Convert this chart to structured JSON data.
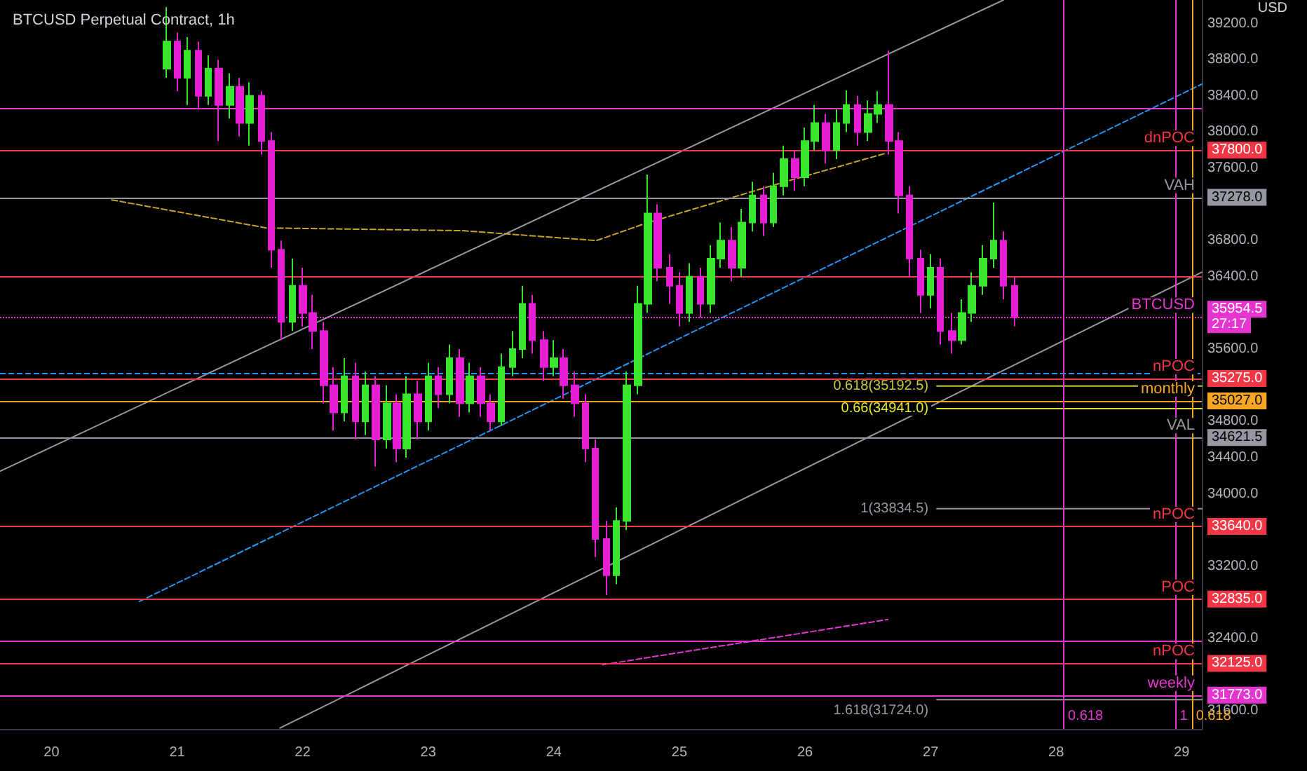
{
  "chart_data": {
    "type": "candlestick",
    "title": "BTCUSD Perpetual Contract, 1h",
    "xlim": [
      19.59,
      29.16
    ],
    "ylim": [
      31400,
      39460
    ],
    "xticks": [
      20,
      21,
      22,
      23,
      24,
      25,
      26,
      27,
      28,
      29
    ],
    "yticks": [
      {
        "value": 31600,
        "label": "31600.0"
      },
      {
        "value": 31773,
        "label": "31773.0"
      },
      {
        "value": 32125,
        "label": "32125.0"
      },
      {
        "value": 32400,
        "label": "32400.0"
      },
      {
        "value": 32835,
        "label": "32835.0"
      },
      {
        "value": 33200,
        "label": "33200.0"
      },
      {
        "value": 33640,
        "label": "33640.0"
      },
      {
        "value": 34000,
        "label": "34000.0"
      },
      {
        "value": 34400,
        "label": "34400.0"
      },
      {
        "value": 34621.5,
        "label": "34621.5"
      },
      {
        "value": 34800,
        "label": "34800.0"
      },
      {
        "value": 35027,
        "label": "35027.0"
      },
      {
        "value": 35275,
        "label": "35275.0"
      },
      {
        "value": 35600,
        "label": "35600.0"
      },
      {
        "value": 35954.5,
        "label": "35954.5\n27:17"
      },
      {
        "value": 36400,
        "label": "36400.0"
      },
      {
        "value": 36800,
        "label": "36800.0"
      },
      {
        "value": 37278,
        "label": "37278.0"
      },
      {
        "value": 37600,
        "label": "37600.0"
      },
      {
        "value": 37800,
        "label": "37800.0"
      },
      {
        "value": 38000,
        "label": "38000.0"
      },
      {
        "value": 38400,
        "label": "38400.0"
      },
      {
        "value": 38800,
        "label": "38800.0"
      },
      {
        "value": 39200,
        "label": "39200.0"
      }
    ],
    "grid": false,
    "legend": false,
    "series": [
      {
        "colors": [
          "#39e62e",
          "#e61ed6",
          "#39e62e",
          "#e61ed6",
          "#39e62e",
          "#e61ed6",
          "#39e62e",
          "#e61ed6",
          "#39e62e",
          "#e61ed6",
          "#e61ed6",
          "#e61ed6",
          "#39e62e",
          "#e61ed6",
          "#e61ed6",
          "#e61ed6",
          "#e61ed6",
          "#39e62e",
          "#e61ed6",
          "#39e62e",
          "#e61ed6",
          "#39e62e",
          "#e61ed6",
          "#39e62e",
          "#e61ed6",
          "#39e62e",
          "#e61ed6",
          "#39e62e",
          "#e61ed6",
          "#39e62e",
          "#e61ed6",
          "#e61ed6",
          "#39e62e",
          "#39e62e",
          "#39e62e",
          "#e61ed6",
          "#e61ed6",
          "#39e62e",
          "#e61ed6",
          "#e61ed6",
          "#e61ed6",
          "#e61ed6",
          "#e61ed6",
          "#39e62e",
          "#39e62e",
          "#39e62e",
          "#39e62e",
          "#e61ed6",
          "#e61ed6",
          "#e61ed6",
          "#39e62e",
          "#e61ed6",
          "#39e62e",
          "#39e62e",
          "#e61ed6",
          "#39e62e",
          "#39e62e",
          "#e61ed6",
          "#39e62e",
          "#39e62e",
          "#e61ed6",
          "#39e62e",
          "#39e62e",
          "#e61ed6",
          "#39e62e",
          "#39e62e",
          "#e61ed6",
          "#39e62e",
          "#39e62e",
          "#e61ed6",
          "#e61ed6",
          "#e61ed6",
          "#e61ed6",
          "#39e62e",
          "#e61ed6",
          "#e61ed6",
          "#39e62e",
          "#39e62e",
          "#39e62e",
          "#39e62e",
          "#e61ed6",
          "#e61ed6"
        ],
        "x": [
          20.92,
          21.0,
          21.08,
          21.17,
          21.25,
          21.33,
          21.42,
          21.5,
          21.58,
          21.67,
          21.75,
          21.83,
          21.92,
          22,
          22.08,
          22.17,
          22.25,
          22.33,
          22.42,
          22.5,
          22.58,
          22.67,
          22.75,
          22.83,
          22.92,
          23,
          23.08,
          23.17,
          23.25,
          23.33,
          23.42,
          23.5,
          23.58,
          23.67,
          23.75,
          23.83,
          23.92,
          24,
          24.08,
          24.17,
          24.25,
          24.33,
          24.42,
          24.5,
          24.58,
          24.67,
          24.75,
          24.83,
          24.92,
          25,
          25.08,
          25.17,
          25.25,
          25.33,
          25.42,
          25.5,
          25.58,
          25.67,
          25.75,
          25.83,
          25.92,
          26,
          26.08,
          26.17,
          26.25,
          26.33,
          26.42,
          26.5,
          26.58,
          26.67,
          26.75,
          26.83,
          26.92,
          27,
          27.08,
          27.17,
          27.25,
          27.33,
          27.42,
          27.5,
          27.58,
          27.67
        ],
        "ohlc": [
          [
            38700,
            39380,
            38600,
            39000
          ],
          [
            39000,
            39100,
            38450,
            38600
          ],
          [
            38600,
            39050,
            38300,
            38900
          ],
          [
            38900,
            39000,
            38250,
            38400
          ],
          [
            38400,
            38850,
            38300,
            38700
          ],
          [
            38700,
            38800,
            37900,
            38300
          ],
          [
            38300,
            38650,
            38150,
            38500
          ],
          [
            38500,
            38600,
            37950,
            38100
          ],
          [
            38100,
            38550,
            37850,
            38400
          ],
          [
            38400,
            38450,
            37750,
            37900
          ],
          [
            37900,
            38000,
            36500,
            36700
          ],
          [
            36700,
            36800,
            35700,
            35900
          ],
          [
            35900,
            36600,
            35800,
            36300
          ],
          [
            36300,
            36500,
            35850,
            36000
          ],
          [
            36000,
            36200,
            35600,
            35800
          ],
          [
            35800,
            35900,
            35000,
            35200
          ],
          [
            35200,
            35400,
            34700,
            34900
          ],
          [
            34900,
            35500,
            34800,
            35300
          ],
          [
            35300,
            35450,
            34600,
            34800
          ],
          [
            34800,
            35350,
            34650,
            35200
          ],
          [
            35200,
            35300,
            34300,
            34600
          ],
          [
            34600,
            35200,
            34500,
            35000
          ],
          [
            35000,
            35100,
            34350,
            34500
          ],
          [
            34500,
            35300,
            34400,
            35100
          ],
          [
            35100,
            35250,
            34600,
            34800
          ],
          [
            34800,
            35450,
            34700,
            35300
          ],
          [
            35300,
            35400,
            34950,
            35100
          ],
          [
            35100,
            35650,
            35000,
            35500
          ],
          [
            35500,
            35600,
            34850,
            35000
          ],
          [
            35000,
            35450,
            34900,
            35300
          ],
          [
            35300,
            35400,
            34850,
            35000
          ],
          [
            35000,
            35100,
            34700,
            34800
          ],
          [
            34800,
            35550,
            34750,
            35400
          ],
          [
            35400,
            35800,
            35300,
            35600
          ],
          [
            35600,
            36300,
            35500,
            36100
          ],
          [
            36100,
            36200,
            35550,
            35700
          ],
          [
            35700,
            35800,
            35250,
            35400
          ],
          [
            35400,
            35700,
            35300,
            35500
          ],
          [
            35500,
            35600,
            35050,
            35200
          ],
          [
            35200,
            35350,
            34850,
            35000
          ],
          [
            35000,
            35100,
            34350,
            34500
          ],
          [
            34500,
            34600,
            33300,
            33500
          ],
          [
            33500,
            33700,
            32880,
            33100
          ],
          [
            33100,
            33850,
            33000,
            33700
          ],
          [
            33700,
            35350,
            33600,
            35200
          ],
          [
            35200,
            36300,
            35100,
            36100
          ],
          [
            36100,
            37530,
            36000,
            37100
          ],
          [
            37100,
            37200,
            36350,
            36500
          ],
          [
            36500,
            36650,
            36100,
            36300
          ],
          [
            36300,
            36450,
            35850,
            36000
          ],
          [
            36000,
            36550,
            35900,
            36400
          ],
          [
            36400,
            36500,
            35950,
            36100
          ],
          [
            36100,
            36750,
            36000,
            36600
          ],
          [
            36600,
            37000,
            36500,
            36800
          ],
          [
            36800,
            36950,
            36350,
            36500
          ],
          [
            36500,
            37150,
            36400,
            37000
          ],
          [
            37000,
            37450,
            36900,
            37300
          ],
          [
            37300,
            37400,
            36850,
            37000
          ],
          [
            37000,
            37550,
            36950,
            37400
          ],
          [
            37400,
            37850,
            37300,
            37700
          ],
          [
            37700,
            37800,
            37350,
            37500
          ],
          [
            37500,
            38050,
            37400,
            37900
          ],
          [
            37900,
            38300,
            37800,
            38100
          ],
          [
            38100,
            38200,
            37650,
            37800
          ],
          [
            37800,
            38250,
            37700,
            38100
          ],
          [
            38100,
            38460,
            38000,
            38300
          ],
          [
            38300,
            38400,
            37850,
            38000
          ],
          [
            38000,
            38350,
            37900,
            38200
          ],
          [
            38200,
            38450,
            38100,
            38300
          ],
          [
            38300,
            38900,
            37750,
            37900
          ],
          [
            37900,
            38000,
            37100,
            37300
          ],
          [
            37300,
            37400,
            36400,
            36600
          ],
          [
            36600,
            36700,
            36000,
            36200
          ],
          [
            36200,
            36650,
            36050,
            36500
          ],
          [
            36500,
            36600,
            35650,
            35800
          ],
          [
            35800,
            36000,
            35550,
            35700
          ],
          [
            35700,
            36150,
            35650,
            36000
          ],
          [
            36000,
            36450,
            35900,
            36300
          ],
          [
            36300,
            36750,
            36200,
            36600
          ],
          [
            36600,
            37220,
            36500,
            36800
          ],
          [
            36800,
            36900,
            36150,
            36300
          ],
          [
            36300,
            36400,
            35850,
            35954.5
          ]
        ]
      },
      {
        "type": "line",
        "color": "#9598a1",
        "x": [
          19.59,
          27.58
        ],
        "values": [
          34250,
          39460
        ]
      },
      {
        "type": "line",
        "color": "#9598a1",
        "x": [
          21.82,
          29.16
        ],
        "values": [
          31410,
          36450
        ]
      },
      {
        "type": "line",
        "color": "#2196f3",
        "line_style": "dashed",
        "x": [
          20.7,
          29.16
        ],
        "values": [
          32810,
          38530
        ]
      },
      {
        "type": "line",
        "color": "#c9a227",
        "line_style": "dashed",
        "x": [
          20.48,
          21.71,
          23.27,
          24.34,
          24.73,
          25.84,
          26.63
        ],
        "values": [
          37250,
          36940,
          36910,
          36800,
          36990,
          37450,
          37760
        ]
      },
      {
        "type": "line",
        "color": "#e535d0",
        "line_style": "dashed",
        "x": [
          24.39,
          26.66
        ],
        "values": [
          32110,
          32610
        ]
      },
      {
        "type": "line",
        "name": "0.618(35192.5)",
        "color": "#c8c83a",
        "x": [
          27.05,
          29.16
        ],
        "values": [
          35192.5,
          35192.5
        ]
      },
      {
        "type": "line",
        "name": "0.66(34941.0)",
        "color": "#e6e62e",
        "x": [
          27.05,
          29.16
        ],
        "values": [
          34941.0,
          34941.0
        ]
      },
      {
        "type": "line",
        "name": "1(33834.5)",
        "color": "#9598a1",
        "x": [
          27.05,
          29.16
        ],
        "values": [
          33834.5,
          33834.5
        ]
      },
      {
        "type": "line",
        "name": "1.618(31724.0)",
        "color": "#9598a1",
        "x": [
          27.05,
          29.16
        ],
        "values": [
          31724.0,
          31724.0
        ]
      }
    ],
    "ref_lines": [
      {
        "axis": "y",
        "value": 38260,
        "color": "#e535d0"
      },
      {
        "axis": "y",
        "value": 37800,
        "label": "dnPOC",
        "color": "#f23645"
      },
      {
        "axis": "y",
        "value": 37278,
        "label": "VAH",
        "color": "#9598a1"
      },
      {
        "axis": "y",
        "value": 36400,
        "color": "#f23645"
      },
      {
        "axis": "y",
        "value": 35954.5,
        "label": "BTCUSD",
        "color": "#e535d0",
        "line_style": "dotted"
      },
      {
        "axis": "y",
        "value": 35330,
        "color": "#2196f3",
        "line_style": "dashed"
      },
      {
        "axis": "y",
        "value": 35275,
        "label": "nPOC",
        "color": "#f23645"
      },
      {
        "axis": "y",
        "value": 35027,
        "label": "monthly",
        "color": "#f5a623"
      },
      {
        "axis": "y",
        "value": 34621.5,
        "label": "VAL",
        "color": "#9598a1"
      },
      {
        "axis": "y",
        "value": 33640,
        "label": "nPOC",
        "color": "#f23645"
      },
      {
        "axis": "y",
        "value": 32835,
        "label": "POC",
        "color": "#f23645"
      },
      {
        "axis": "y",
        "value": 32370,
        "color": "#e535d0"
      },
      {
        "axis": "y",
        "value": 32125,
        "label": "nPOC",
        "color": "#f23645"
      },
      {
        "axis": "y",
        "value": 31773,
        "label": "weekly",
        "color": "#e535d0"
      },
      {
        "axis": "x",
        "value": 28.06,
        "color": "#e535d0"
      },
      {
        "axis": "x",
        "value": 28.95,
        "color": "#e535d0"
      },
      {
        "axis": "x",
        "value": 29.08,
        "color": "#f5a623"
      }
    ],
    "annotations": [
      "USD",
      {
        "text": "0.618",
        "x": 28.06
      },
      {
        "text": "1",
        "x": 28.95
      },
      {
        "text": "0.618",
        "x": 29.08
      }
    ]
  }
}
